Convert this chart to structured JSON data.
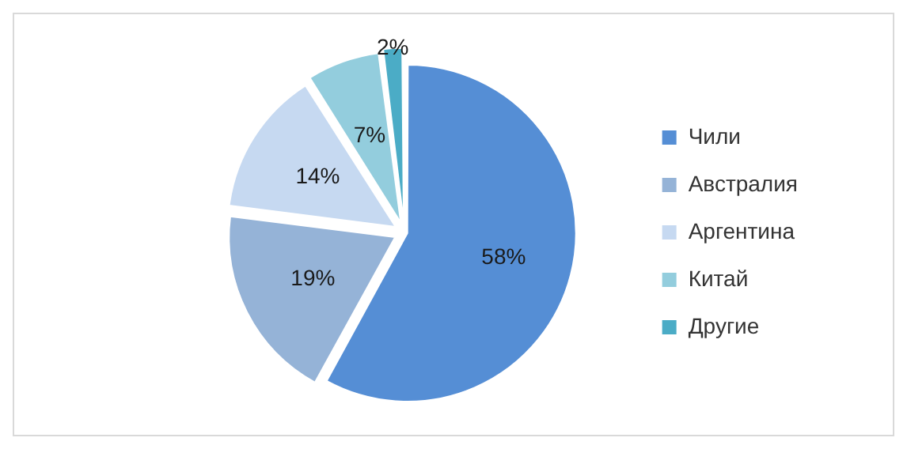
{
  "chart_data": {
    "type": "pie",
    "categories": [
      "Чили",
      "Австралия",
      "Аргентина",
      "Китай",
      "Другие"
    ],
    "values": [
      58,
      19,
      14,
      7,
      2
    ],
    "colors": [
      "#558ed5",
      "#95b3d7",
      "#c6d9f1",
      "#93cddd",
      "#4bacc6"
    ],
    "value_labels": [
      "58%",
      "19%",
      "14%",
      "7%",
      "2%"
    ],
    "legend": "right"
  }
}
